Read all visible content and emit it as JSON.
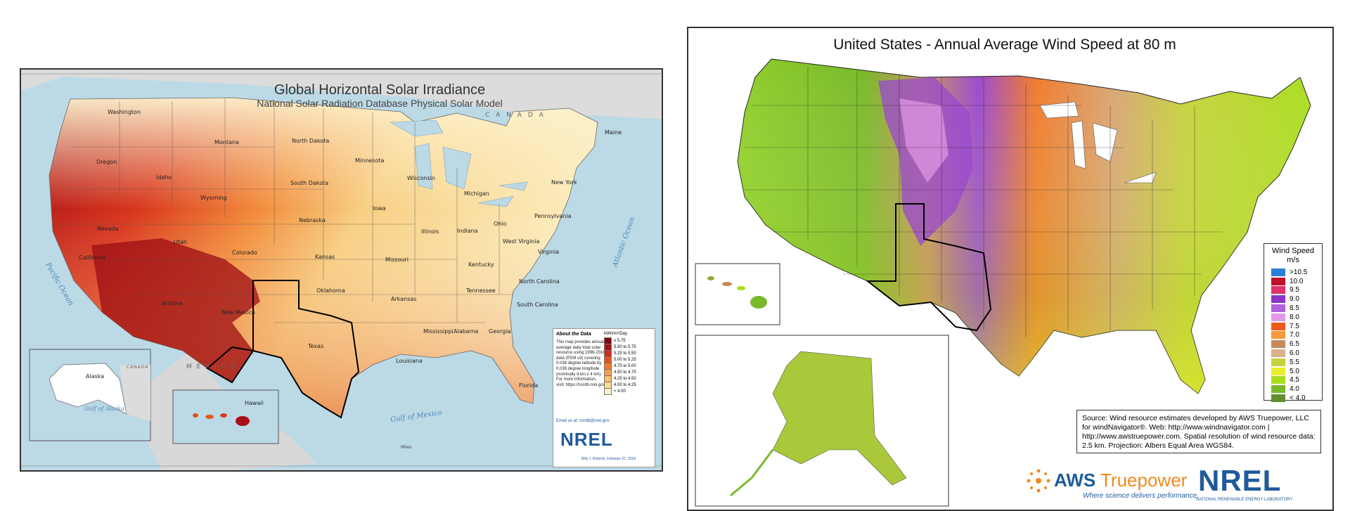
{
  "solar_map": {
    "title": "Global Horizontal Solar Irradiance",
    "subtitle": "National Solar Radiation Database Physical Solar Model",
    "country_label": "C A N A D A",
    "mexico_label": "M E X I C O",
    "oceans": [
      "Pacific Ocean",
      "Atlantic Ocean",
      "Gulf of Mexico"
    ],
    "states": [
      {
        "name": "Washington"
      },
      {
        "name": "Oregon"
      },
      {
        "name": "California"
      },
      {
        "name": "Nevada"
      },
      {
        "name": "Idaho"
      },
      {
        "name": "Montana"
      },
      {
        "name": "Wyoming"
      },
      {
        "name": "Utah"
      },
      {
        "name": "Arizona"
      },
      {
        "name": "Colorado"
      },
      {
        "name": "New Mexico"
      },
      {
        "name": "North Dakota"
      },
      {
        "name": "South Dakota"
      },
      {
        "name": "Nebraska"
      },
      {
        "name": "Kansas"
      },
      {
        "name": "Oklahoma"
      },
      {
        "name": "Texas"
      },
      {
        "name": "Minnesota"
      },
      {
        "name": "Iowa"
      },
      {
        "name": "Missouri"
      },
      {
        "name": "Arkansas"
      },
      {
        "name": "Louisiana"
      },
      {
        "name": "Wisconsin"
      },
      {
        "name": "Illinois"
      },
      {
        "name": "Michigan"
      },
      {
        "name": "Indiana"
      },
      {
        "name": "Ohio"
      },
      {
        "name": "Kentucky"
      },
      {
        "name": "Tennessee"
      },
      {
        "name": "Mississippi"
      },
      {
        "name": "Alabama"
      },
      {
        "name": "Georgia"
      },
      {
        "name": "Florida"
      },
      {
        "name": "South Carolina"
      },
      {
        "name": "North Carolina"
      },
      {
        "name": "Virginia"
      },
      {
        "name": "West Virginia"
      },
      {
        "name": "Pennsylvania"
      },
      {
        "name": "New York"
      },
      {
        "name": "Maine"
      }
    ],
    "inset_alaska": "Alaska",
    "inset_hawaii": "Hawaii",
    "inset_gulf_alaska": "Gulf of Alaska",
    "inset_canada": "CANADA",
    "about": {
      "heading": "About the Data",
      "text": "This map provides annual average daily total solar resource using 1998-2016 data (PSM v3) covering 0.038 degree latitude by 0.038 degree longitude (nominally 4 km x 4 km). For more information, visit: https://nsrdb.nrel.gov",
      "email": "Email us at: nsrdb@nrel.gov",
      "legend_title": "kWh/m²/Day",
      "legend": [
        {
          "label": "≥ 5.75",
          "color": "#7a0010"
        },
        {
          "label": "5.50 to 5.75",
          "color": "#a80f16"
        },
        {
          "label": "5.25 to 5.50",
          "color": "#cf2a1c"
        },
        {
          "label": "5.00 to 5.25",
          "color": "#e6501f"
        },
        {
          "label": "4.75 to 5.00",
          "color": "#f07a2c"
        },
        {
          "label": "4.50 to 4.75",
          "color": "#f4a04a"
        },
        {
          "label": "4.25 to 4.50",
          "color": "#f7c16e"
        },
        {
          "label": "4.00 to 4.25",
          "color": "#f9dc98"
        },
        {
          "label": "< 4.00",
          "color": "#fcf1c8"
        }
      ]
    },
    "logo": "NREL",
    "author": "Billy J. Roberts, February 22, 2018",
    "scale_label": "Miles"
  },
  "wind_map": {
    "title": "United States - Annual Average Wind Speed at 80 m",
    "legend_title": "Wind Speed",
    "legend_unit": "m/s",
    "legend": [
      {
        "label": ">10.5",
        "color": "#2a7fd6"
      },
      {
        "label": "10.0",
        "color": "#c0112a"
      },
      {
        "label": "9.5",
        "color": "#e0306e"
      },
      {
        "label": "9.0",
        "color": "#8e35c7"
      },
      {
        "label": "8.5",
        "color": "#b160e0"
      },
      {
        "label": "8.0",
        "color": "#e29ae6"
      },
      {
        "label": "7.5",
        "color": "#f05a1a"
      },
      {
        "label": "7.0",
        "color": "#f39a3d"
      },
      {
        "label": "6.5",
        "color": "#c8895a"
      },
      {
        "label": "6.0",
        "color": "#d9b08c"
      },
      {
        "label": "5.5",
        "color": "#c6d13d"
      },
      {
        "label": "5.0",
        "color": "#e8ee2a"
      },
      {
        "label": "4.5",
        "color": "#a9dd1f"
      },
      {
        "label": "4.0",
        "color": "#79b92a"
      },
      {
        "label": "< 4.0",
        "color": "#5f8f2e"
      }
    ],
    "source": "Source: Wind resource estimates developed by AWS Truepower, LLC for windNavigator®. Web: http://www.windnavigator.com | http://www.awstruepower.com. Spatial resolution of wind resource data: 2.5 km. Projection: Albers Equal Area WGS84.",
    "aws_logo_a": "AWS",
    "aws_logo_b": "Truepower",
    "aws_tagline": "Where science delivers performance.",
    "nrel_logo": "NREL",
    "nrel_sub": "NATIONAL RENEWABLE ENERGY LABORATORY"
  }
}
